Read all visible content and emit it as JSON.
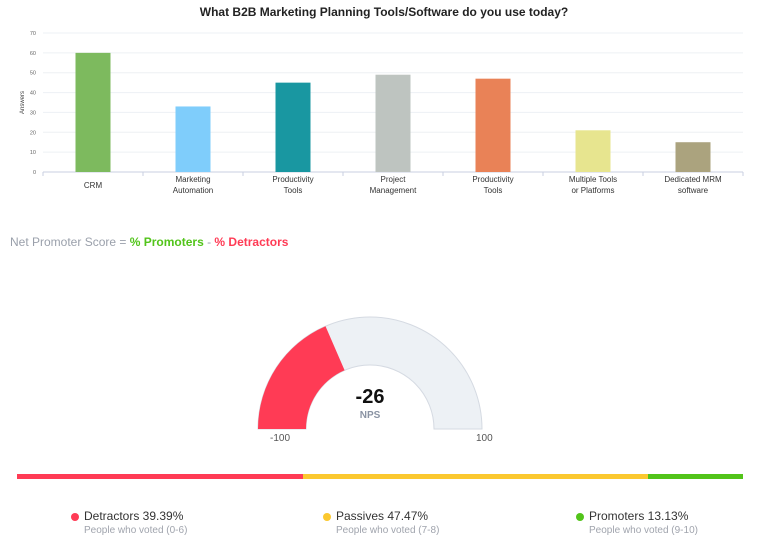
{
  "chart_data": {
    "type": "bar",
    "title": "What B2B Marketing Planning Tools/Software do you use today?",
    "ylabel": "Answers",
    "xlabel": "",
    "ylim": [
      0,
      70
    ],
    "yticks": [
      0,
      10,
      20,
      30,
      40,
      50,
      60,
      70
    ],
    "grid": true,
    "categories": [
      [
        "CRM"
      ],
      [
        "Marketing",
        "Automation"
      ],
      [
        "Productivity",
        "Tools"
      ],
      [
        "Project",
        "Management"
      ],
      [
        "Productivity",
        "Tools"
      ],
      [
        "Multiple Tools",
        "or Platforms"
      ],
      [
        "Dedicated MRM",
        "software"
      ]
    ],
    "values": [
      60,
      33,
      45,
      49,
      47,
      21,
      15
    ],
    "colors": [
      "#7dba5e",
      "#7fcdfb",
      "#1997a1",
      "#bec4c0",
      "#e98257",
      "#e7e58f",
      "#aba37e"
    ]
  },
  "nps": {
    "formula_prefix": "Net Promoter Score = ",
    "formula_promoters": "% Promoters",
    "formula_minus": " - ",
    "formula_detractors": "% Detractors",
    "score": "-26",
    "score_value": -26,
    "score_label": "NPS",
    "min_label": "-100",
    "max_label": "100",
    "gauge_color": "#ff3b55",
    "gauge_track": "#edf1f5",
    "segments": [
      {
        "title": "Detractors 39.39%",
        "sub": "People who voted (0-6)",
        "pct": 39.39,
        "color": "#ff3b55"
      },
      {
        "title": "Passives 47.47%",
        "sub": "People who voted (7-8)",
        "pct": 47.47,
        "color": "#fbc82f"
      },
      {
        "title": "Promoters 13.13%",
        "sub": "People who voted (9-10)",
        "pct": 13.13,
        "color": "#52c41a"
      }
    ]
  }
}
